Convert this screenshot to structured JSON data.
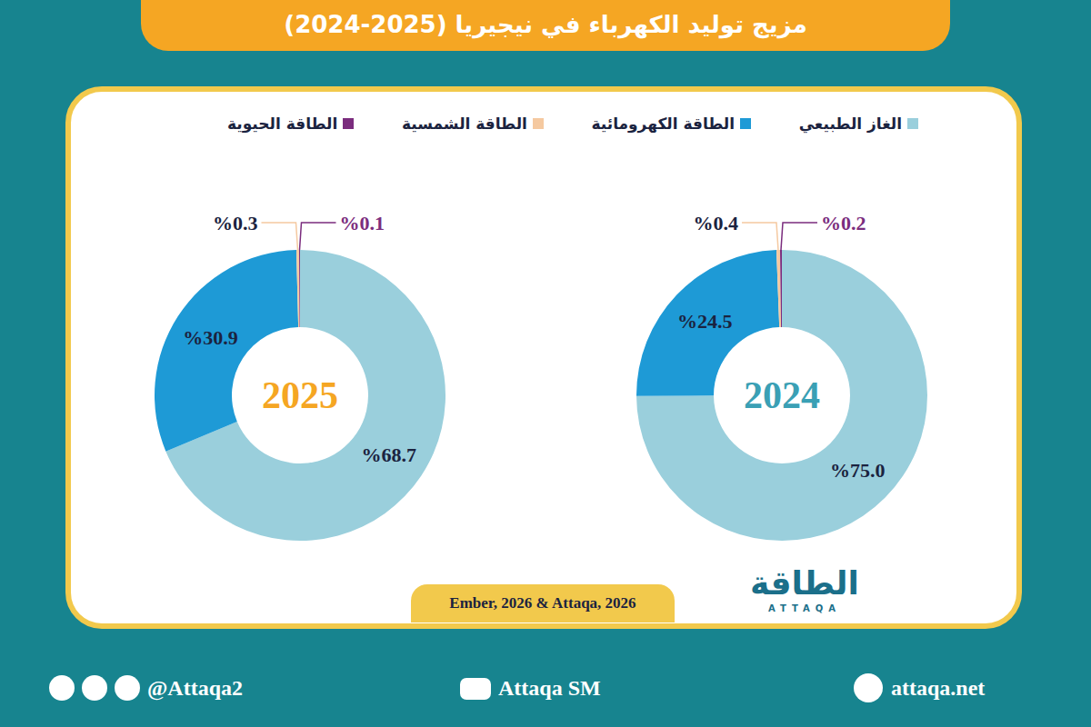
{
  "title": "مزيج توليد الكهرباء في نيجيريا (2025-2024)",
  "source": "Ember, 2026 & Attaqa, 2026",
  "logo": {
    "text": "الطاقة",
    "subtext": "ATTAQA"
  },
  "footer": {
    "social": "@Attaqa2",
    "youtube": "Attaqa SM",
    "website": "attaqa.net"
  },
  "chart_data": [
    {
      "type": "pie",
      "title": "2025",
      "categories": [
        "الغاز الطبيعي",
        "الطاقة الكهرومائية",
        "الطاقة الشمسية",
        "الطاقة الحيوية"
      ],
      "values": [
        68.7,
        30.9,
        0.3,
        0.1
      ],
      "value_labels": [
        "%68.7",
        "%30.9",
        "%0.3",
        "%0.1"
      ],
      "colors": [
        "#9ACFDC",
        "#1E9AD6",
        "#F5C9A0",
        "#7B2D7E"
      ],
      "data_labels": true,
      "legend": "top"
    },
    {
      "type": "pie",
      "title": "2024",
      "categories": [
        "الغاز الطبيعي",
        "الطاقة الكهرومائية",
        "الطاقة الشمسية",
        "الطاقة الحيوية"
      ],
      "values": [
        75.0,
        24.5,
        0.4,
        0.2
      ],
      "value_labels": [
        "%75.0",
        "%24.5",
        "%0.4",
        "%0.2"
      ],
      "colors": [
        "#9ACFDC",
        "#1E9AD6",
        "#F5C9A0",
        "#7B2D7E"
      ],
      "data_labels": true,
      "legend": "top"
    }
  ]
}
